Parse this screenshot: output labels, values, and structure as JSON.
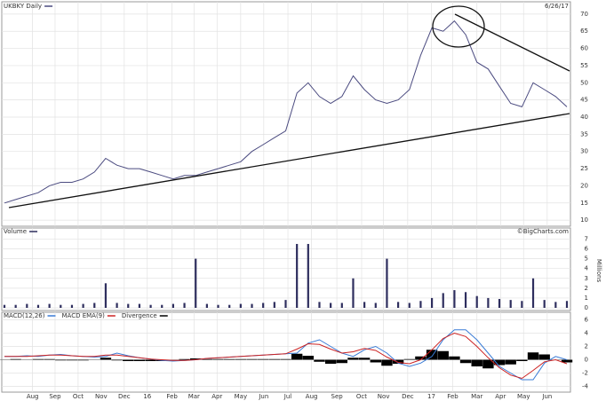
{
  "chart_data": [
    {
      "type": "line",
      "title": "UKBKY Daily",
      "date_label": "6/26/17",
      "color": "#4b4b80",
      "x": [
        0,
        2,
        4,
        6,
        8,
        10,
        12,
        14,
        16,
        18,
        20,
        22,
        24,
        26,
        28,
        30,
        32,
        34,
        36,
        38,
        40,
        42,
        44,
        46,
        48,
        50,
        52,
        54,
        56,
        58,
        60,
        62,
        64,
        66,
        68,
        70,
        72,
        74,
        76,
        78,
        80,
        82,
        84,
        86,
        88,
        90,
        92,
        94,
        96,
        98,
        100
      ],
      "values": [
        15,
        16,
        17,
        18,
        20,
        21,
        21,
        22,
        24,
        28,
        26,
        25,
        25,
        24,
        23,
        22,
        23,
        23,
        24,
        25,
        26,
        27,
        30,
        32,
        34,
        36,
        47,
        50,
        46,
        44,
        46,
        52,
        48,
        45,
        44,
        45,
        48,
        58,
        66,
        65,
        68,
        64,
        56,
        54,
        49,
        44,
        43,
        50,
        48,
        46,
        43
      ],
      "xlim": [
        0,
        100
      ],
      "ylim": [
        9,
        71
      ],
      "yticks": [
        10,
        15,
        20,
        25,
        30,
        35,
        40,
        45,
        50,
        55,
        60,
        65,
        70
      ],
      "grid": true
    },
    {
      "type": "bar",
      "title": "Volume",
      "source": "©BigCharts.com",
      "y_label": "Millions",
      "color": "#2e2e5e",
      "x": [
        0,
        2,
        4,
        6,
        8,
        10,
        12,
        14,
        16,
        18,
        20,
        22,
        24,
        26,
        28,
        30,
        32,
        34,
        36,
        38,
        40,
        42,
        44,
        46,
        48,
        50,
        52,
        54,
        56,
        58,
        60,
        62,
        64,
        66,
        68,
        70,
        72,
        74,
        76,
        78,
        80,
        82,
        84,
        86,
        88,
        90,
        92,
        94,
        96,
        98,
        100
      ],
      "values": [
        0.3,
        0.3,
        0.4,
        0.3,
        0.4,
        0.3,
        0.3,
        0.4,
        0.5,
        2.5,
        0.5,
        0.4,
        0.4,
        0.3,
        0.3,
        0.4,
        0.5,
        5.0,
        0.4,
        0.3,
        0.3,
        0.4,
        0.4,
        0.5,
        0.6,
        0.8,
        6.5,
        6.5,
        0.6,
        0.5,
        0.5,
        3.0,
        0.6,
        0.5,
        5.0,
        0.6,
        0.5,
        0.7,
        1.0,
        1.5,
        1.8,
        1.6,
        1.2,
        1.0,
        0.9,
        0.8,
        0.7,
        3.0,
        0.8,
        0.6,
        0.7
      ],
      "xlim": [
        0,
        100
      ],
      "ylim": [
        0,
        7.4
      ],
      "yticks": [
        0,
        1,
        2,
        3,
        4,
        5,
        6,
        7
      ],
      "grid": true
    },
    {
      "type": "line",
      "x": [
        0,
        2,
        4,
        6,
        8,
        10,
        12,
        14,
        16,
        18,
        20,
        22,
        24,
        26,
        28,
        30,
        32,
        34,
        36,
        38,
        40,
        42,
        44,
        46,
        48,
        50,
        52,
        54,
        56,
        58,
        60,
        62,
        64,
        66,
        68,
        70,
        72,
        74,
        76,
        78,
        80,
        82,
        84,
        86,
        88,
        90,
        92,
        94,
        96,
        98,
        100
      ],
      "series": [
        {
          "name": "MACD(12,26)",
          "color": "#3a7bd5",
          "mark": "line",
          "values": [
            0.5,
            0.5,
            0.6,
            0.5,
            0.7,
            0.8,
            0.6,
            0.5,
            0.4,
            0.5,
            1.0,
            0.6,
            0.3,
            0.1,
            -0.1,
            -0.2,
            -0.1,
            0.0,
            0.2,
            0.3,
            0.4,
            0.5,
            0.6,
            0.7,
            0.8,
            0.9,
            1.0,
            2.5,
            3.0,
            2.0,
            1.0,
            0.5,
            1.5,
            2.0,
            1.0,
            -0.5,
            -1.0,
            -0.5,
            0.5,
            3.0,
            4.5,
            4.5,
            3.0,
            1.0,
            -1.0,
            -2.0,
            -3.0,
            -3.0,
            -0.5,
            0.5,
            0.0
          ]
        },
        {
          "name": "MACD EMA(9)",
          "color": "#cc2222",
          "mark": "line",
          "values": [
            0.5,
            0.5,
            0.5,
            0.6,
            0.7,
            0.7,
            0.6,
            0.5,
            0.5,
            0.7,
            0.7,
            0.5,
            0.3,
            0.1,
            0.0,
            -0.1,
            -0.1,
            0.0,
            0.2,
            0.3,
            0.4,
            0.5,
            0.6,
            0.7,
            0.8,
            0.9,
            1.6,
            2.4,
            2.3,
            1.6,
            1.0,
            1.2,
            1.7,
            1.4,
            0.4,
            -0.4,
            -0.6,
            0.0,
            1.5,
            3.2,
            4.0,
            3.5,
            2.0,
            0.3,
            -1.2,
            -2.3,
            -2.8,
            -1.6,
            -0.3,
            0.0,
            -0.6
          ]
        },
        {
          "name": "Divergence",
          "color": "#000000",
          "mark": "bar",
          "values": [
            0,
            0.1,
            0,
            0.1,
            0.1,
            -0.1,
            -0.1,
            -0.1,
            0,
            0.3,
            -0.1,
            -0.2,
            -0.2,
            -0.2,
            -0.2,
            0,
            0.1,
            0.2,
            0.1,
            0.1,
            0.1,
            0.1,
            0.1,
            0.1,
            0.1,
            0.1,
            0.9,
            0.6,
            -0.3,
            -0.6,
            -0.5,
            0.3,
            0.3,
            -0.4,
            -0.9,
            -0.6,
            0.1,
            0.5,
            1.5,
            1.3,
            0.5,
            -0.5,
            -1.0,
            -1.3,
            -0.8,
            -0.7,
            -0.2,
            1.1,
            0.8,
            0,
            -0.4
          ]
        }
      ],
      "xlim": [
        0,
        100
      ],
      "ylim": [
        -4.6,
        6.6
      ],
      "yticks": [
        6,
        4,
        2,
        0,
        -2,
        -4
      ],
      "grid": true,
      "xticks": [
        {
          "value": 5.0,
          "label": "Aug"
        },
        {
          "value": 9.0,
          "label": "Sep"
        },
        {
          "value": 13.1,
          "label": "Oct"
        },
        {
          "value": 17.2,
          "label": "Nov"
        },
        {
          "value": 21.3,
          "label": "Dec"
        },
        {
          "value": 25.4,
          "label": "16"
        },
        {
          "value": 29.8,
          "label": "Feb"
        },
        {
          "value": 33.7,
          "label": "Mar"
        },
        {
          "value": 37.8,
          "label": "Apr"
        },
        {
          "value": 42.0,
          "label": "May"
        },
        {
          "value": 46.1,
          "label": "Jun"
        },
        {
          "value": 50.4,
          "label": "Jul"
        },
        {
          "value": 54.6,
          "label": "Aug"
        },
        {
          "value": 59.1,
          "label": "Sep"
        },
        {
          "value": 63.5,
          "label": "Oct"
        },
        {
          "value": 67.4,
          "label": "Nov"
        },
        {
          "value": 71.7,
          "label": "Dec"
        },
        {
          "value": 75.9,
          "label": "17"
        },
        {
          "value": 79.7,
          "label": "Feb"
        },
        {
          "value": 84.0,
          "label": "Mar"
        },
        {
          "value": 88.2,
          "label": "Apr"
        },
        {
          "value": 92.3,
          "label": "May"
        },
        {
          "value": 96.5,
          "label": "Jun"
        }
      ]
    }
  ]
}
